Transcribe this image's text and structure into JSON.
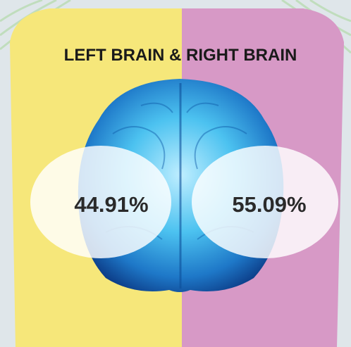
{
  "title": "LEFT BRAIN & RIGHT BRAIN",
  "left": {
    "label": "44.91%"
  },
  "right": {
    "label": "55.09%"
  }
}
